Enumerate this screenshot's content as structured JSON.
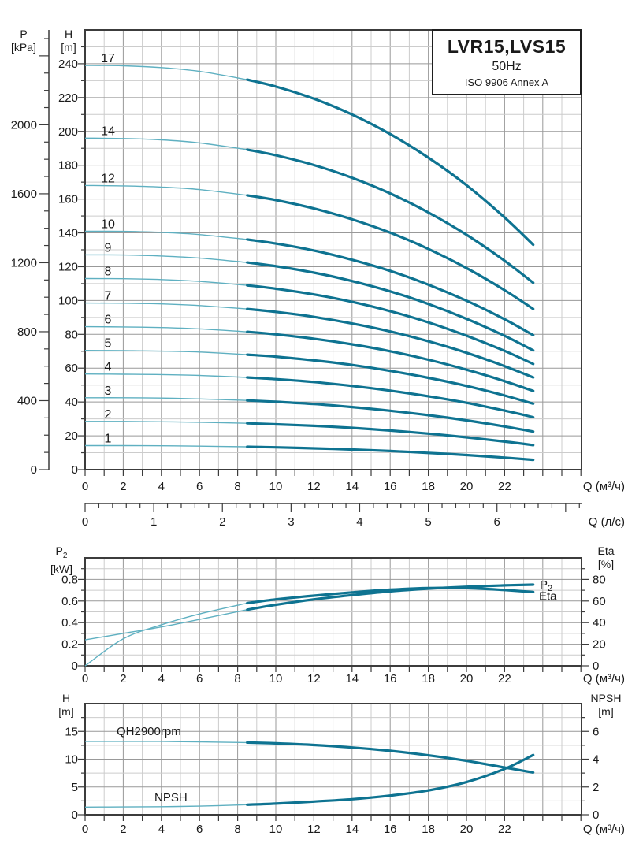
{
  "title_box": {
    "model": "LVR15,LVS15",
    "frequency": "50Hz",
    "standard": "ISO 9906 Annex A"
  },
  "axis_headers": {
    "pressure": {
      "symbol": "P",
      "unit": "[kPa]"
    },
    "head_main": {
      "symbol": "H",
      "unit": "[m]"
    },
    "power": {
      "symbol_base": "P",
      "symbol_sub": "2",
      "unit": "[kW]"
    },
    "eta": {
      "symbol": "Eta",
      "unit": "[%]"
    },
    "head_small": {
      "symbol": "H",
      "unit": "[m]"
    },
    "npsh": {
      "symbol": "NPSH",
      "unit": "[m]"
    }
  },
  "colors": {
    "curve_thick": "#0e7391",
    "curve_thin": "#5fb0c1",
    "grid_major": "#999999",
    "grid_minor": "#cccccc",
    "frame": "#3c3c3c",
    "text": "#1a1a1a"
  },
  "chart_data": [
    {
      "type": "line",
      "title": "QH curves by number of stages",
      "xlabel": "Q (м³/ч)",
      "xlabel_secondary": "Q (л/с)",
      "ylabel": "H [m]",
      "ylabel_secondary": "P [kPa]",
      "xlim": [
        0,
        26
      ],
      "ylim": [
        0,
        260
      ],
      "grid": true,
      "thick_from_q": 8.5,
      "x_ticks_labeled": [
        0,
        2,
        4,
        6,
        8,
        10,
        12,
        14,
        16,
        18,
        20,
        22
      ],
      "y_ticks": [
        0,
        20,
        40,
        60,
        80,
        100,
        120,
        140,
        160,
        180,
        200,
        220,
        240
      ],
      "pressure_ticks": [
        0,
        400,
        800,
        1200,
        1600,
        2000
      ],
      "flow_ls_ticks": [
        0,
        1,
        2,
        3,
        4,
        5,
        6
      ],
      "x": [
        0,
        2,
        4,
        6,
        8.5,
        10,
        12,
        14,
        16,
        18,
        20,
        22,
        23.5
      ],
      "series": [
        {
          "name": "17",
          "values": [
            239,
            238.8,
            237.7,
            235.5,
            230.6,
            226.5,
            219.3,
            210.0,
            198.4,
            184.5,
            168.2,
            149.1,
            133
          ]
        },
        {
          "name": "14",
          "values": [
            196,
            195.8,
            195.0,
            193.2,
            189.2,
            185.9,
            180.1,
            172.6,
            163.3,
            152.1,
            138.9,
            123.5,
            110.5
          ]
        },
        {
          "name": "12",
          "values": [
            168,
            167.8,
            167.1,
            165.6,
            162.2,
            159.4,
            154.4,
            148.0,
            140.1,
            130.5,
            119.2,
            106.1,
            95
          ]
        },
        {
          "name": "10",
          "values": [
            141,
            140.9,
            140.3,
            139.0,
            136.1,
            133.7,
            129.6,
            124.1,
            117.5,
            109.4,
            99.9,
            88.9,
            79.5
          ]
        },
        {
          "name": "9",
          "values": [
            127,
            126.9,
            126.3,
            125.1,
            122.5,
            120.3,
            116.5,
            111.5,
            105.4,
            98.0,
            89.2,
            79.1,
            70.5
          ]
        },
        {
          "name": "8",
          "values": [
            113,
            112.9,
            112.4,
            111.3,
            109.0,
            107.0,
            103.6,
            99.2,
            93.7,
            87.1,
            79.2,
            70.2,
            62.5
          ]
        },
        {
          "name": "7",
          "values": [
            98.5,
            98.4,
            98.0,
            97.0,
            95.0,
            93.3,
            90.3,
            86.4,
            81.7,
            75.9,
            69.1,
            61.2,
            54.5
          ]
        },
        {
          "name": "6",
          "values": [
            84.5,
            84.4,
            84.0,
            83.2,
            81.5,
            80.0,
            77.4,
            74.1,
            70.0,
            65.0,
            59.1,
            52.3,
            46.5
          ]
        },
        {
          "name": "5",
          "values": [
            70.5,
            70.4,
            70.1,
            69.5,
            68.0,
            66.8,
            64.6,
            61.9,
            58.4,
            54.3,
            49.5,
            43.8,
            39
          ]
        },
        {
          "name": "4",
          "values": [
            56.5,
            56.4,
            56.2,
            55.7,
            54.5,
            53.5,
            51.8,
            49.5,
            46.7,
            43.4,
            39.5,
            34.9,
            31
          ]
        },
        {
          "name": "3",
          "values": [
            42.5,
            42.5,
            42.3,
            41.8,
            40.9,
            40.1,
            38.8,
            37.0,
            34.8,
            32.2,
            29.1,
            25.5,
            22.5
          ]
        },
        {
          "name": "2",
          "values": [
            28.5,
            28.5,
            28.3,
            28.0,
            27.4,
            26.8,
            25.9,
            24.7,
            23.1,
            21.3,
            19.1,
            16.6,
            14.5
          ]
        },
        {
          "name": "1",
          "values": [
            14.2,
            14.2,
            14.1,
            13.9,
            13.5,
            13.2,
            12.6,
            11.9,
            11.0,
            9.9,
            8.6,
            7.1,
            5.8
          ]
        }
      ]
    },
    {
      "type": "line",
      "title": "Power and efficiency",
      "xlabel": "Q (м³/ч)",
      "ylabel_left": "P2 [kW]",
      "ylabel_right": "Eta [%]",
      "xlim": [
        0,
        26
      ],
      "ylim_left": [
        0,
        1.0
      ],
      "ylim_right": [
        0,
        100
      ],
      "grid": true,
      "thick_from_q": 8.5,
      "x_ticks_labeled": [
        0,
        2,
        4,
        6,
        8,
        10,
        12,
        14,
        16,
        18,
        20,
        22
      ],
      "y_ticks_left": [
        "0",
        "0.2",
        "0.4",
        "0.6",
        "0.8"
      ],
      "y_ticks_right": [
        0,
        20,
        40,
        60,
        80
      ],
      "x": [
        0,
        2,
        4,
        6,
        8.5,
        10,
        12,
        14,
        16,
        18,
        20,
        22,
        23.5
      ],
      "series": [
        {
          "name": "P2",
          "label_base": "P",
          "label_sub": "2",
          "axis": "left",
          "values": [
            0.24,
            0.3,
            0.36,
            0.43,
            0.52,
            0.565,
            0.615,
            0.655,
            0.69,
            0.715,
            0.732,
            0.745,
            0.752
          ]
        },
        {
          "name": "Eta",
          "axis": "right",
          "values": [
            0,
            25,
            38,
            48,
            58,
            61.5,
            65,
            68,
            70.5,
            72,
            72,
            70.2,
            68.3
          ]
        }
      ]
    },
    {
      "type": "line",
      "title": "Single stage QH and NPSH",
      "xlabel": "Q (м³/ч)",
      "ylabel_left": "H [m]",
      "ylabel_right": "NPSH [m]",
      "xlim": [
        0,
        26
      ],
      "ylim_left": [
        0,
        20
      ],
      "ylim_right": [
        0,
        8
      ],
      "grid": true,
      "thick_from_q": 8.5,
      "x_ticks_labeled": [
        0,
        2,
        4,
        6,
        8,
        10,
        12,
        14,
        16,
        18,
        20,
        22
      ],
      "y_ticks_left": [
        0,
        5,
        10,
        15
      ],
      "y_ticks_right": [
        0,
        2,
        4,
        6
      ],
      "x": [
        0,
        2,
        4,
        6,
        8.5,
        10,
        12,
        14,
        16,
        18,
        20,
        22,
        23.5
      ],
      "series": [
        {
          "name": "QH2900rpm",
          "axis": "left",
          "values": [
            13.2,
            13.2,
            13.2,
            13.1,
            13.0,
            12.85,
            12.55,
            12.1,
            11.5,
            10.7,
            9.7,
            8.5,
            7.6
          ]
        },
        {
          "name": "NPSH",
          "axis": "right",
          "values": [
            0.55,
            0.56,
            0.58,
            0.62,
            0.72,
            0.8,
            0.95,
            1.12,
            1.38,
            1.75,
            2.35,
            3.3,
            4.3
          ]
        }
      ]
    }
  ]
}
